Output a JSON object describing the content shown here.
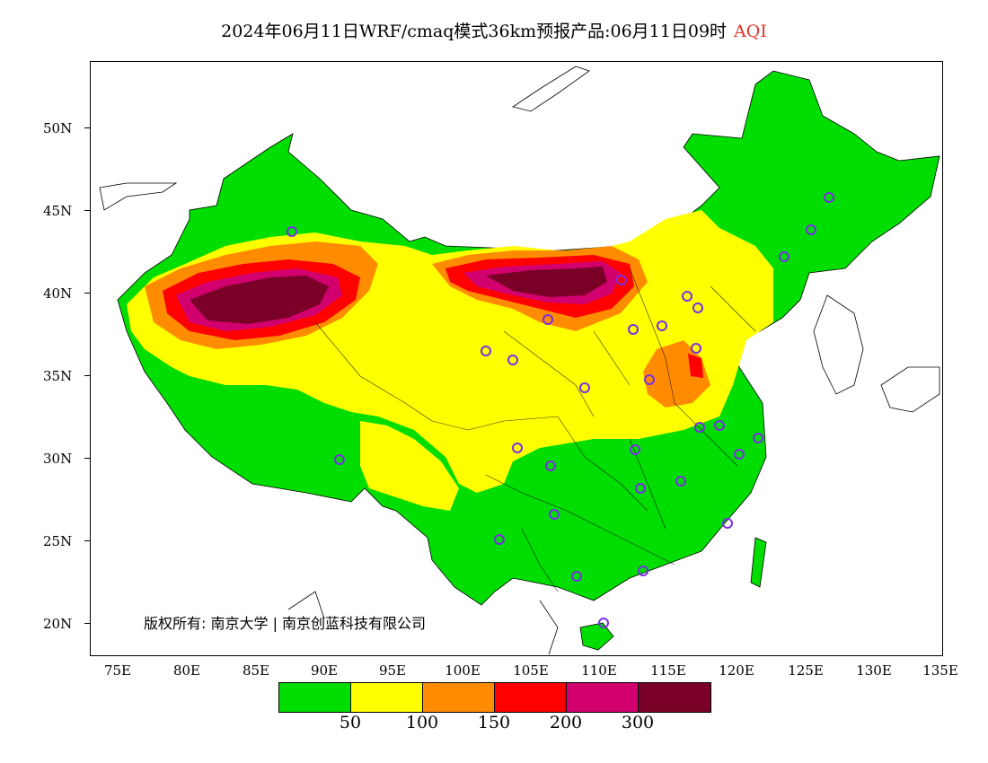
{
  "title": {
    "main": "2024年06月11日WRF/cmaq模式36km预报产品:06月11日09时",
    "variable": "AQI"
  },
  "axes": {
    "y_ticks": [
      "50N",
      "45N",
      "40N",
      "35N",
      "30N",
      "25N",
      "20N"
    ],
    "x_ticks": [
      "75E",
      "80E",
      "85E",
      "90E",
      "95E",
      "100E",
      "105E",
      "110E",
      "115E",
      "120E",
      "125E",
      "130E",
      "135E"
    ]
  },
  "copyright": "版权所有: 南京大学 | 南京创蓝科技有限公司",
  "legend": {
    "colors": [
      "#00dd00",
      "#ffff00",
      "#ff8c00",
      "#ff0000",
      "#d2006e",
      "#7a0028"
    ],
    "labels": [
      "50",
      "100",
      "150",
      "200",
      "300"
    ]
  }
}
